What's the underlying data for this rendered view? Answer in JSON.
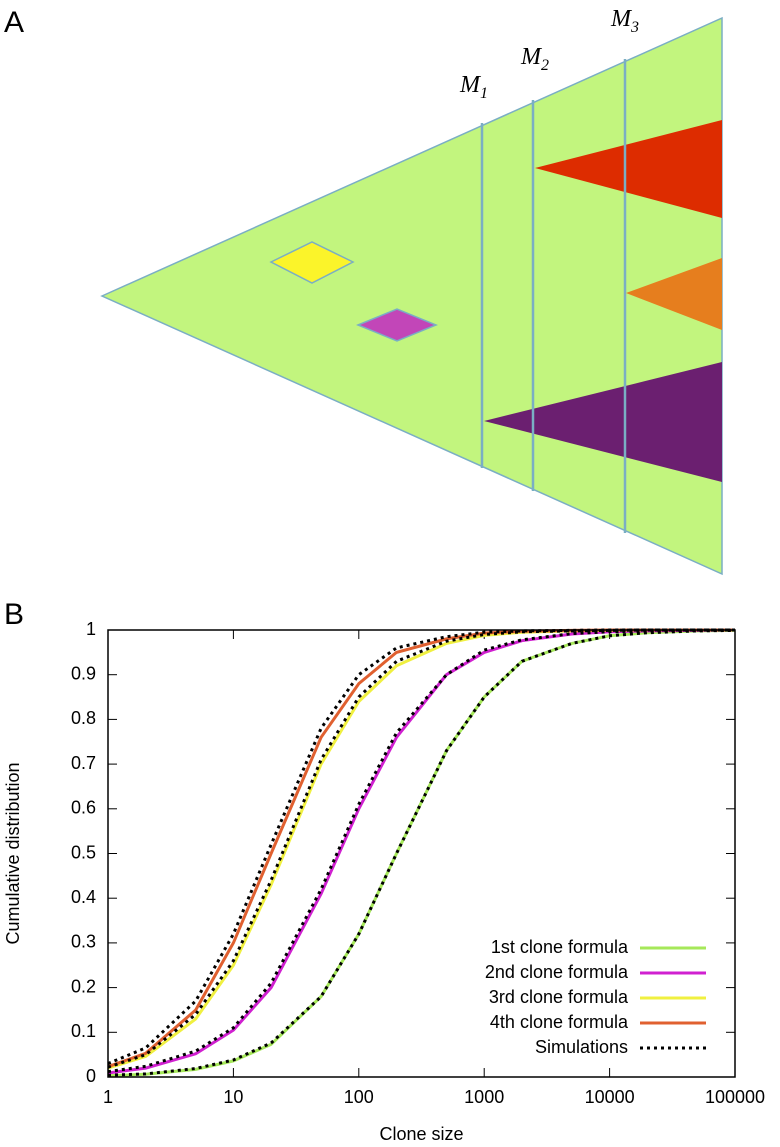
{
  "panel_a": {
    "letter": "A",
    "labels": [
      {
        "text": "M",
        "sub": "1"
      },
      {
        "text": "M",
        "sub": "2"
      },
      {
        "text": "M",
        "sub": "3"
      }
    ]
  },
  "chart_data": {
    "type": "line",
    "letter": "B",
    "x_label": "Clone size",
    "y_label": "Cumulative distribution",
    "log_x": true,
    "xlim": [
      1,
      100000
    ],
    "xticks": [
      1,
      10,
      100,
      1000,
      10000,
      100000
    ],
    "ylim": [
      0,
      1
    ],
    "yticks": [
      0,
      0.1,
      0.2,
      0.3,
      0.4,
      0.5,
      0.6,
      0.7,
      0.8,
      0.9,
      1
    ],
    "x": [
      1,
      2,
      5,
      10,
      20,
      50,
      100,
      200,
      500,
      1000,
      2000,
      5000,
      10000,
      20000,
      50000,
      100000
    ],
    "simulation_name": "Simulations",
    "simulation_color": "#000000",
    "series": [
      {
        "name": "1st clone formula",
        "color": "#a6e85a",
        "values": [
          0.003,
          0.006,
          0.017,
          0.036,
          0.073,
          0.18,
          0.32,
          0.5,
          0.73,
          0.85,
          0.93,
          0.97,
          0.987,
          0.994,
          0.998,
          0.999
        ],
        "sim_values": [
          0.004,
          0.007,
          0.019,
          0.038,
          0.076,
          0.18,
          0.32,
          0.5,
          0.73,
          0.85,
          0.93,
          0.97,
          0.987,
          0.994,
          0.998,
          0.999
        ]
      },
      {
        "name": "2nd clone formula",
        "color": "#d020d0",
        "values": [
          0.009,
          0.02,
          0.052,
          0.105,
          0.2,
          0.41,
          0.6,
          0.76,
          0.9,
          0.95,
          0.976,
          0.991,
          0.996,
          0.998,
          0.999,
          1
        ],
        "sim_values": [
          0.012,
          0.024,
          0.058,
          0.11,
          0.21,
          0.42,
          0.61,
          0.77,
          0.9,
          0.955,
          0.978,
          0.992,
          0.996,
          0.998,
          0.999,
          1
        ]
      },
      {
        "name": "3rd clone formula",
        "color": "#f0f040",
        "values": [
          0.02,
          0.046,
          0.13,
          0.25,
          0.43,
          0.7,
          0.84,
          0.92,
          0.97,
          0.988,
          0.995,
          0.998,
          0.999,
          1,
          1,
          1
        ],
        "sim_values": [
          0.022,
          0.05,
          0.14,
          0.26,
          0.44,
          0.71,
          0.85,
          0.93,
          0.975,
          0.99,
          0.996,
          0.998,
          0.999,
          1,
          1,
          1
        ]
      },
      {
        "name": "4th clone formula",
        "color": "#e06030",
        "values": [
          0.023,
          0.053,
          0.15,
          0.3,
          0.5,
          0.76,
          0.88,
          0.95,
          0.98,
          0.993,
          0.997,
          0.999,
          1,
          1,
          1,
          1
        ],
        "sim_values": [
          0.03,
          0.065,
          0.17,
          0.32,
          0.52,
          0.78,
          0.9,
          0.96,
          0.985,
          0.995,
          0.998,
          0.999,
          1,
          1,
          1,
          1
        ]
      }
    ]
  }
}
